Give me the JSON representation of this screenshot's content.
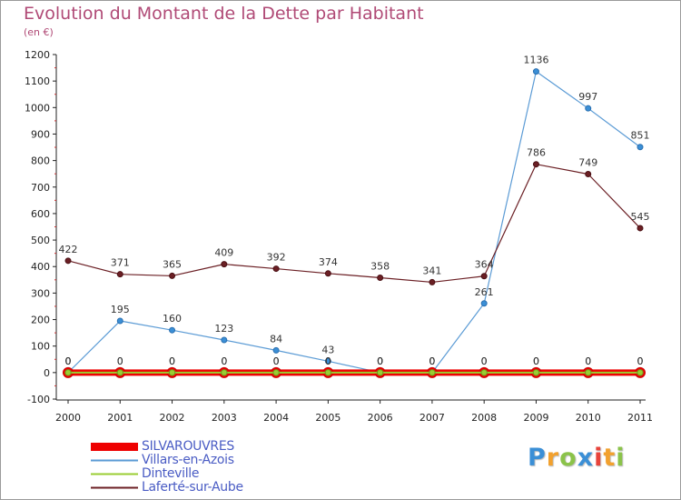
{
  "header": {
    "title": "Evolution du Montant de la Dette par Habitant",
    "unit": "(en €)"
  },
  "brand": {
    "letters": [
      "P",
      "r",
      "o",
      "x",
      "i",
      "t",
      "i"
    ],
    "colors": [
      "#3b8fd6",
      "#f2a12e",
      "#8bc34a",
      "#3b8fd6",
      "#e8433a",
      "#f2a12e",
      "#8bc34a"
    ]
  },
  "chart_data": {
    "type": "line",
    "title": "Evolution du Montant de la Dette par Habitant",
    "xlabel": "",
    "ylabel": "",
    "x": [
      "2000",
      "2001",
      "2002",
      "2003",
      "2004",
      "2005",
      "2006",
      "2007",
      "2008",
      "2009",
      "2010",
      "2011"
    ],
    "ylim": [
      -100,
      1200
    ],
    "yticks": [
      -100,
      0,
      100,
      200,
      300,
      400,
      500,
      600,
      700,
      800,
      900,
      1000,
      1100,
      1200
    ],
    "grid": false,
    "legend_position": "bottom-left",
    "series": [
      {
        "name": "SILVAROUVRES",
        "color": "#ee0000",
        "values": [
          0,
          0,
          0,
          0,
          0,
          0,
          0,
          0,
          0,
          0,
          0,
          0
        ],
        "labels": [
          "0",
          "0",
          "0",
          "0",
          "0",
          "0",
          "0",
          "0",
          "0",
          "0",
          "0",
          "0"
        ]
      },
      {
        "name": "Villars-en-Azois",
        "color": "#5b9bd5",
        "values": [
          0,
          195,
          160,
          123,
          84,
          43,
          0,
          0,
          261,
          1136,
          997,
          851
        ],
        "labels": [
          "0",
          "195",
          "160",
          "123",
          "84",
          "43",
          "0",
          "0",
          "261",
          "1136",
          "997",
          "851"
        ]
      },
      {
        "name": "Dinteville",
        "color": "#9acd32",
        "values": [
          0,
          0,
          0,
          0,
          0,
          0,
          0,
          0,
          0,
          0,
          0,
          0
        ],
        "labels": [
          "0",
          "0",
          "0",
          "0",
          "0",
          "0",
          "0",
          "0",
          "0",
          "0",
          "0",
          "0"
        ]
      },
      {
        "name": "Laferté-sur-Aube",
        "color": "#6b1f24",
        "values": [
          422,
          371,
          365,
          409,
          392,
          374,
          358,
          341,
          364,
          786,
          749,
          545
        ],
        "labels": [
          "422",
          "371",
          "365",
          "409",
          "392",
          "374",
          "358",
          "341",
          "364",
          "786",
          "749",
          "545"
        ]
      }
    ]
  }
}
